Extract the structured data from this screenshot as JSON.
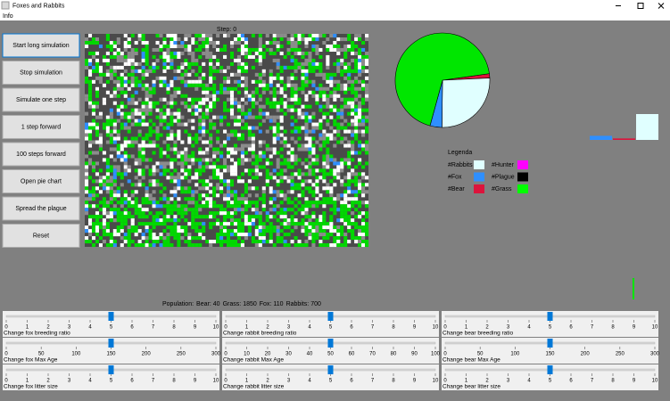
{
  "window": {
    "title": "Foxes and Rabbits",
    "menu": [
      "Info"
    ]
  },
  "buttons": [
    "Start long simulation",
    "Stop simulation",
    "Simulate one step",
    "1 step forward",
    "100 steps forward",
    "Open pie chart",
    "Spread the plague",
    "Reset"
  ],
  "field": {
    "step_label": "Step: 0"
  },
  "population": {
    "label": "Population:",
    "entries": [
      {
        "name": "Bear:",
        "value": 40,
        "color": "#dc143c"
      },
      {
        "name": "Grass:",
        "value": 1850,
        "color": "#00e600"
      },
      {
        "name": "Fox:",
        "value": 110,
        "color": "#2f8fff"
      },
      {
        "name": "Rabbits:",
        "value": 700,
        "color": "#e0ffff"
      }
    ]
  },
  "legend": {
    "title": "Legenda",
    "items": [
      {
        "label": "#Rabbits",
        "color": "#e0ffff"
      },
      {
        "label": "#Fox",
        "color": "#2f8fff"
      },
      {
        "label": "#Bear",
        "color": "#dc143c"
      },
      {
        "label": "#Hunter",
        "color": "#ff00ff"
      },
      {
        "label": "#Plague",
        "color": "#000000"
      },
      {
        "label": "#Grass",
        "color": "#00ff00"
      }
    ]
  },
  "sliders": [
    {
      "label": "Change fox breeding ratio",
      "min": 0,
      "max": 10,
      "value": 5,
      "ticks": [
        0,
        1,
        2,
        3,
        4,
        5,
        6,
        7,
        8,
        9,
        10
      ]
    },
    {
      "label": "Change rabbit breeding ratio",
      "min": 0,
      "max": 10,
      "value": 5,
      "ticks": [
        0,
        1,
        2,
        3,
        4,
        5,
        6,
        7,
        8,
        9,
        10
      ]
    },
    {
      "label": "Change bear breeding ratio",
      "min": 0,
      "max": 10,
      "value": 5,
      "ticks": [
        0,
        1,
        2,
        3,
        4,
        5,
        6,
        7,
        8,
        9,
        10
      ]
    },
    {
      "label": "Change fox Max Age",
      "min": 0,
      "max": 300,
      "value": 150,
      "ticks": [
        0,
        50,
        100,
        150,
        200,
        250,
        300
      ]
    },
    {
      "label": "Change rabbit Max Age",
      "min": 0,
      "max": 100,
      "value": 50,
      "ticks": [
        0,
        10,
        20,
        30,
        40,
        50,
        60,
        70,
        80,
        90,
        100
      ]
    },
    {
      "label": "Change bear Max Age",
      "min": 0,
      "max": 300,
      "value": 150,
      "ticks": [
        0,
        50,
        100,
        150,
        200,
        250,
        300
      ]
    },
    {
      "label": "Change fox litter size",
      "min": 0,
      "max": 10,
      "value": 5,
      "ticks": [
        0,
        1,
        2,
        3,
        4,
        5,
        6,
        7,
        8,
        9,
        10
      ]
    },
    {
      "label": "Change rabbit litter size",
      "min": 0,
      "max": 10,
      "value": 5,
      "ticks": [
        0,
        1,
        2,
        3,
        4,
        5,
        6,
        7,
        8,
        9,
        10
      ]
    },
    {
      "label": "Change bear litter size",
      "min": 0,
      "max": 10,
      "value": 5,
      "ticks": [
        0,
        1,
        2,
        3,
        4,
        5,
        6,
        7,
        8,
        9,
        10
      ]
    }
  ]
}
